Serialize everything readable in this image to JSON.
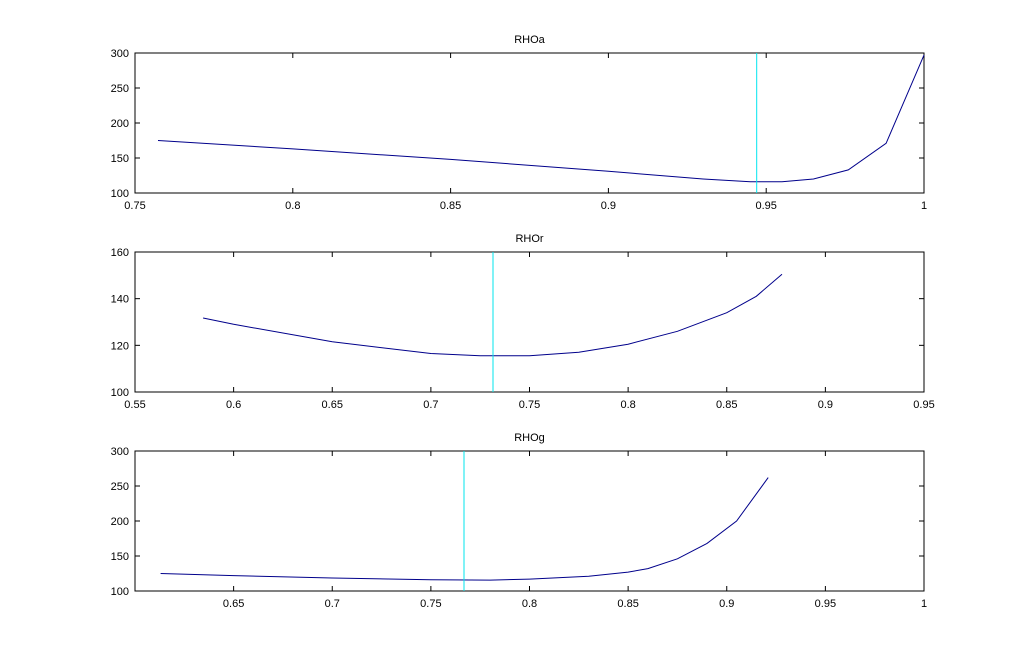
{
  "chart_data": [
    {
      "type": "line",
      "title": "RHOa",
      "xlim": [
        0.75,
        1
      ],
      "xticks": [
        0.75,
        0.8,
        0.85,
        0.9,
        0.95,
        1
      ],
      "ylim": [
        100,
        300
      ],
      "yticks": [
        100,
        150,
        200,
        250,
        300
      ],
      "series": [
        {
          "color": "#00008b",
          "x": [
            0.7573,
            0.8,
            0.85,
            0.9,
            0.93,
            0.945,
            0.955,
            0.965,
            0.976,
            0.988,
            1.0
          ],
          "values": [
            175,
            163,
            148,
            131,
            120,
            116,
            116,
            120,
            133,
            171,
            297
          ]
        },
        {
          "color": "#00e5ee",
          "x": [
            0.947,
            0.947
          ],
          "values": [
            100,
            300
          ]
        }
      ]
    },
    {
      "type": "line",
      "title": "RHOr",
      "xlim": [
        0.55,
        0.95
      ],
      "xticks": [
        0.55,
        0.6,
        0.65,
        0.7,
        0.75,
        0.8,
        0.85,
        0.9,
        0.95
      ],
      "ylim": [
        100,
        160
      ],
      "yticks": [
        100,
        120,
        140,
        160
      ],
      "series": [
        {
          "color": "#00008b",
          "x": [
            0.5845,
            0.6,
            0.65,
            0.7,
            0.725,
            0.75,
            0.775,
            0.8,
            0.825,
            0.85,
            0.865,
            0.878
          ],
          "values": [
            131.7,
            129,
            121.5,
            116.5,
            115.5,
            115.5,
            117,
            120.5,
            126,
            134,
            141,
            150.5
          ]
        },
        {
          "color": "#00e5ee",
          "x": [
            0.7315,
            0.7315
          ],
          "values": [
            100,
            160
          ]
        }
      ]
    },
    {
      "type": "line",
      "title": "RHOg",
      "xlim": [
        0.6,
        1
      ],
      "xticks": [
        0.65,
        0.7,
        0.75,
        0.8,
        0.85,
        0.9,
        0.95,
        1
      ],
      "ylim": [
        100,
        300
      ],
      "yticks": [
        100,
        150,
        200,
        250,
        300
      ],
      "series": [
        {
          "color": "#00008b",
          "x": [
            0.613,
            0.65,
            0.7,
            0.75,
            0.78,
            0.8,
            0.83,
            0.85,
            0.86,
            0.875,
            0.89,
            0.905,
            0.921
          ],
          "values": [
            125,
            122,
            118.5,
            116,
            115.5,
            117,
            121,
            127,
            132,
            146,
            168,
            200,
            262
          ]
        },
        {
          "color": "#00e5ee",
          "x": [
            0.7668,
            0.7668
          ],
          "values": [
            100,
            300
          ]
        }
      ]
    }
  ]
}
